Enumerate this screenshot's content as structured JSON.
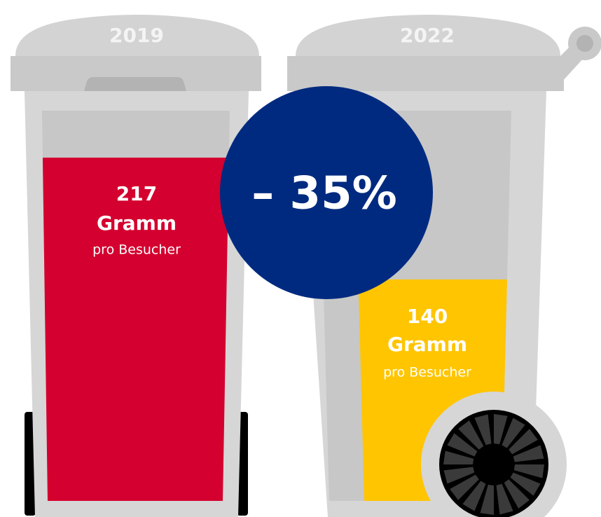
{
  "chart_data": {
    "type": "bin",
    "categories": [
      "2019",
      "2022"
    ],
    "values": [
      217,
      140
    ],
    "colors": [
      "#d4002f",
      "#ffc500"
    ],
    "unit": "Gramm",
    "sublabel": "pro Besucher",
    "annotation": "– 35%",
    "annotation_color": "#002a80"
  }
}
